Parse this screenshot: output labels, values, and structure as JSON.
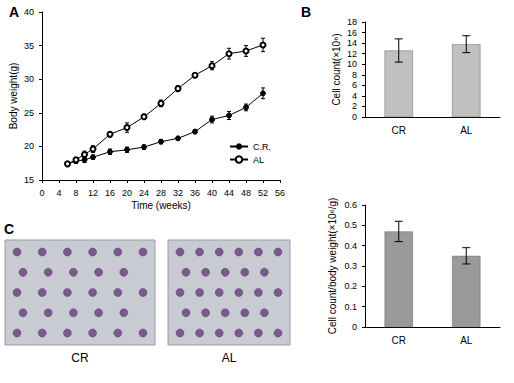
{
  "chart_data": [
    {
      "type": "line",
      "title": "A",
      "x_label": "Time (weeks)",
      "y_label": "Body weight(g)",
      "x": [
        6,
        8,
        10,
        12,
        16,
        20,
        24,
        28,
        32,
        36,
        40,
        44,
        48,
        52
      ],
      "series": [
        {
          "name": "C.R.",
          "color": "#000000",
          "marker": "filled_circle",
          "values": [
            17.4,
            17.8,
            18.0,
            18.4,
            19.2,
            19.5,
            19.9,
            20.7,
            21.2,
            22.2,
            24.0,
            24.6,
            25.8,
            27.9
          ],
          "errors": [
            0.2,
            0.3,
            0.4,
            0.3,
            0.4,
            0.4,
            0.3,
            0.3,
            0.2,
            0.3,
            0.5,
            0.6,
            0.5,
            0.8
          ]
        },
        {
          "name": "AL",
          "color": "#000000",
          "marker": "open_circle",
          "values": [
            17.4,
            18.0,
            18.8,
            19.6,
            21.8,
            22.8,
            24.4,
            26.4,
            28.6,
            30.6,
            32.0,
            33.8,
            34.2,
            35.1
          ],
          "errors": [
            0.2,
            0.3,
            0.5,
            0.5,
            0.4,
            0.7,
            0.4,
            0.5,
            0.4,
            0.3,
            0.6,
            0.8,
            0.8,
            1.0
          ]
        }
      ],
      "xlim": [
        0,
        56
      ],
      "xticks": [
        0,
        4,
        8,
        12,
        16,
        20,
        24,
        28,
        32,
        36,
        40,
        44,
        48,
        52,
        56
      ],
      "ylim": [
        15,
        40
      ],
      "yticks": [
        15,
        20,
        25,
        30,
        35,
        40
      ],
      "grid": false,
      "legend": "right"
    },
    {
      "type": "bar",
      "title": "B",
      "y_label": "Cell count(×10⁶)",
      "categories": [
        "CR",
        "AL"
      ],
      "values": [
        12.6,
        13.8
      ],
      "errors": [
        2.2,
        1.6
      ],
      "color": "#c0c0c0",
      "ylim": [
        0,
        18
      ],
      "yticks": [
        0,
        2,
        4,
        6,
        8,
        10,
        12,
        14,
        16,
        18
      ],
      "grid": false
    },
    {
      "type": "bar",
      "y_label": "Cell count/body weight(×10⁶/g)",
      "categories": [
        "CR",
        "AL"
      ],
      "values": [
        0.47,
        0.35
      ],
      "errors": [
        0.05,
        0.04
      ],
      "color": "#9a9a9a",
      "ylim": [
        0,
        0.6
      ],
      "yticks": [
        0,
        0.1,
        0.2,
        0.3,
        0.4,
        0.5,
        0.6
      ],
      "grid": false
    }
  ],
  "image_panel": {
    "label": "C",
    "captions": [
      "CR",
      "AL"
    ]
  }
}
